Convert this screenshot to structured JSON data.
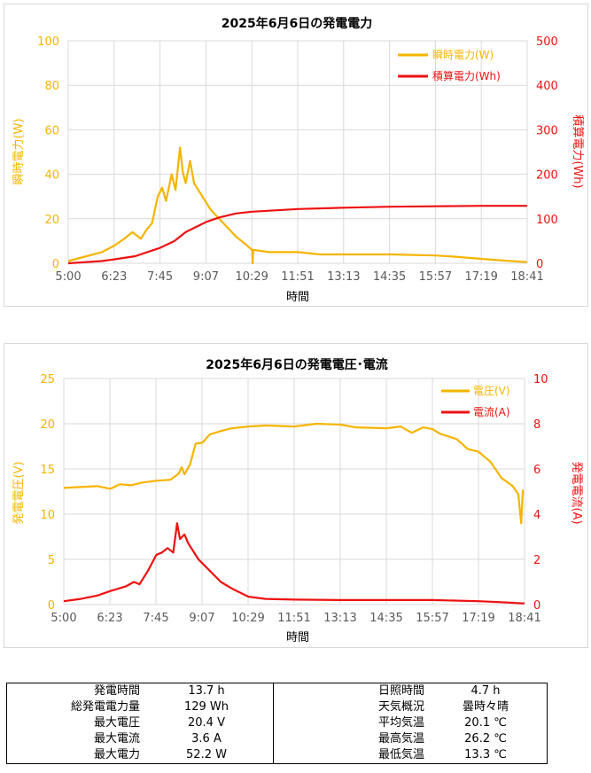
{
  "charts": [
    {
      "id": "power",
      "title": "2025年6月6日の発電電力",
      "xlabel": "時間",
      "ylabel_left": "瞬時電力(W)",
      "ylabel_right": "積算電力(Wh)",
      "x_ticks": [
        "5:00",
        "6:23",
        "7:45",
        "9:07",
        "10:29",
        "11:51",
        "13:13",
        "14:35",
        "15:57",
        "17:19",
        "18:41"
      ],
      "y_left_ticks": [
        "0",
        "20",
        "40",
        "60",
        "80",
        "100"
      ],
      "y_right_ticks": [
        "0",
        "100",
        "200",
        "300",
        "400",
        "500"
      ],
      "legend": [
        "瞬時電力(W)",
        "積算電力(Wh)"
      ]
    },
    {
      "id": "volt-current",
      "title": "2025年6月6日の発電電圧･電流",
      "xlabel": "時間",
      "ylabel_left": "発電電圧(V)",
      "ylabel_right": "発電電流(A)",
      "x_ticks": [
        "5:00",
        "6:23",
        "7:45",
        "9:07",
        "10:29",
        "11:51",
        "13:13",
        "14:35",
        "15:57",
        "17:19",
        "18:41"
      ],
      "y_left_ticks": [
        "0",
        "5",
        "10",
        "15",
        "20",
        "25"
      ],
      "y_right_ticks": [
        "0",
        "2",
        "4",
        "6",
        "8",
        "10"
      ],
      "legend": [
        "電圧(V)",
        "電流(A)"
      ]
    }
  ],
  "colors": {
    "orange": "#f5b400",
    "red": "#ee1111",
    "grid": "#d9d9d9",
    "axis_text": "#595959"
  },
  "chart_data": [
    {
      "type": "line",
      "title": "2025年6月6日の発電電力",
      "xlabel": "時間",
      "x_range": [
        "5:00",
        "18:41"
      ],
      "series": [
        {
          "name": "瞬時電力(W)",
          "axis": "left",
          "ylim": [
            0,
            100
          ],
          "points": [
            [
              "5:00",
              1
            ],
            [
              "5:30",
              3
            ],
            [
              "6:00",
              5
            ],
            [
              "6:23",
              8
            ],
            [
              "6:40",
              11
            ],
            [
              "6:55",
              14
            ],
            [
              "7:10",
              11
            ],
            [
              "7:20",
              15
            ],
            [
              "7:30",
              18
            ],
            [
              "7:40",
              30
            ],
            [
              "7:48",
              34
            ],
            [
              "7:55",
              28
            ],
            [
              "8:05",
              40
            ],
            [
              "8:12",
              33
            ],
            [
              "8:20",
              52
            ],
            [
              "8:25",
              41
            ],
            [
              "8:30",
              36
            ],
            [
              "8:38",
              46
            ],
            [
              "8:45",
              36
            ],
            [
              "9:00",
              30
            ],
            [
              "9:15",
              24
            ],
            [
              "9:30",
              20
            ],
            [
              "9:45",
              16
            ],
            [
              "10:00",
              12
            ],
            [
              "10:15",
              9
            ],
            [
              "10:29",
              6
            ],
            [
              "10:30",
              0
            ],
            [
              "10:31",
              6
            ],
            [
              "11:00",
              5
            ],
            [
              "11:51",
              5
            ],
            [
              "12:30",
              4
            ],
            [
              "13:13",
              4
            ],
            [
              "14:35",
              4
            ],
            [
              "15:57",
              3.5
            ],
            [
              "16:30",
              3
            ],
            [
              "17:19",
              2
            ],
            [
              "18:00",
              1.2
            ],
            [
              "18:41",
              0.5
            ]
          ]
        },
        {
          "name": "積算電力(Wh)",
          "axis": "right",
          "ylim": [
            0,
            500
          ],
          "points": [
            [
              "5:00",
              0
            ],
            [
              "6:00",
              5
            ],
            [
              "6:23",
              9
            ],
            [
              "7:00",
              16
            ],
            [
              "7:45",
              35
            ],
            [
              "8:10",
              50
            ],
            [
              "8:30",
              70
            ],
            [
              "9:07",
              93
            ],
            [
              "9:30",
              103
            ],
            [
              "10:00",
              112
            ],
            [
              "10:29",
              116
            ],
            [
              "11:51",
              122
            ],
            [
              "13:13",
              125
            ],
            [
              "14:35",
              127
            ],
            [
              "15:57",
              128
            ],
            [
              "17:19",
              129
            ],
            [
              "18:41",
              129
            ]
          ]
        }
      ]
    },
    {
      "type": "line",
      "title": "2025年6月6日の発電電圧･電流",
      "xlabel": "時間",
      "x_range": [
        "5:00",
        "18:41"
      ],
      "series": [
        {
          "name": "電圧(V)",
          "axis": "left",
          "ylim": [
            0,
            25
          ],
          "points": [
            [
              "5:00",
              12.9
            ],
            [
              "5:30",
              13.0
            ],
            [
              "6:00",
              13.1
            ],
            [
              "6:23",
              12.8
            ],
            [
              "6:40",
              13.3
            ],
            [
              "7:00",
              13.2
            ],
            [
              "7:20",
              13.5
            ],
            [
              "7:45",
              13.7
            ],
            [
              "8:10",
              13.8
            ],
            [
              "8:25",
              14.5
            ],
            [
              "8:30",
              15.2
            ],
            [
              "8:35",
              14.4
            ],
            [
              "8:45",
              15.5
            ],
            [
              "8:55",
              17.8
            ],
            [
              "9:07",
              17.9
            ],
            [
              "9:20",
              18.8
            ],
            [
              "9:40",
              19.2
            ],
            [
              "10:00",
              19.5
            ],
            [
              "10:29",
              19.7
            ],
            [
              "11:00",
              19.8
            ],
            [
              "11:51",
              19.7
            ],
            [
              "12:30",
              20.0
            ],
            [
              "13:13",
              19.9
            ],
            [
              "13:40",
              19.6
            ],
            [
              "14:35",
              19.5
            ],
            [
              "15:00",
              19.7
            ],
            [
              "15:20",
              19.0
            ],
            [
              "15:40",
              19.6
            ],
            [
              "15:57",
              19.4
            ],
            [
              "16:10",
              18.9
            ],
            [
              "16:40",
              18.3
            ],
            [
              "17:00",
              17.2
            ],
            [
              "17:19",
              16.9
            ],
            [
              "17:40",
              15.8
            ],
            [
              "18:00",
              14.0
            ],
            [
              "18:20",
              13.1
            ],
            [
              "18:30",
              12.2
            ],
            [
              "18:35",
              9.0
            ],
            [
              "18:38",
              12.7
            ]
          ]
        },
        {
          "name": "電流(A)",
          "axis": "right",
          "ylim": [
            0,
            10
          ],
          "points": [
            [
              "5:00",
              0.15
            ],
            [
              "5:30",
              0.25
            ],
            [
              "6:00",
              0.4
            ],
            [
              "6:23",
              0.6
            ],
            [
              "6:50",
              0.8
            ],
            [
              "7:05",
              1.0
            ],
            [
              "7:15",
              0.9
            ],
            [
              "7:30",
              1.5
            ],
            [
              "7:45",
              2.2
            ],
            [
              "7:55",
              2.3
            ],
            [
              "8:05",
              2.5
            ],
            [
              "8:15",
              2.3
            ],
            [
              "8:22",
              3.6
            ],
            [
              "8:27",
              2.9
            ],
            [
              "8:35",
              3.1
            ],
            [
              "8:42",
              2.7
            ],
            [
              "9:00",
              2.0
            ],
            [
              "9:20",
              1.5
            ],
            [
              "9:40",
              1.0
            ],
            [
              "10:00",
              0.7
            ],
            [
              "10:29",
              0.35
            ],
            [
              "11:00",
              0.25
            ],
            [
              "11:51",
              0.22
            ],
            [
              "13:13",
              0.2
            ],
            [
              "14:35",
              0.2
            ],
            [
              "15:57",
              0.2
            ],
            [
              "17:19",
              0.15
            ],
            [
              "18:00",
              0.1
            ],
            [
              "18:41",
              0.05
            ]
          ]
        }
      ]
    }
  ],
  "summary": {
    "left": [
      {
        "label": "発電時間",
        "value": "13.7 h"
      },
      {
        "label": "総発電電力量",
        "value": "129  Wh"
      },
      {
        "label": "最大電圧",
        "value": "20.4  V"
      },
      {
        "label": "最大電流",
        "value": "3.6  A"
      },
      {
        "label": "最大電力",
        "value": "52.2  W"
      }
    ],
    "right": [
      {
        "label": "日照時間",
        "value": "4.7  h"
      },
      {
        "label": "天気概況",
        "value": "曇時々晴"
      },
      {
        "label": "平均気温",
        "value": "20.1 ℃"
      },
      {
        "label": "最高気温",
        "value": "26.2 ℃"
      },
      {
        "label": "最低気温",
        "value": "13.3 ℃"
      }
    ]
  }
}
